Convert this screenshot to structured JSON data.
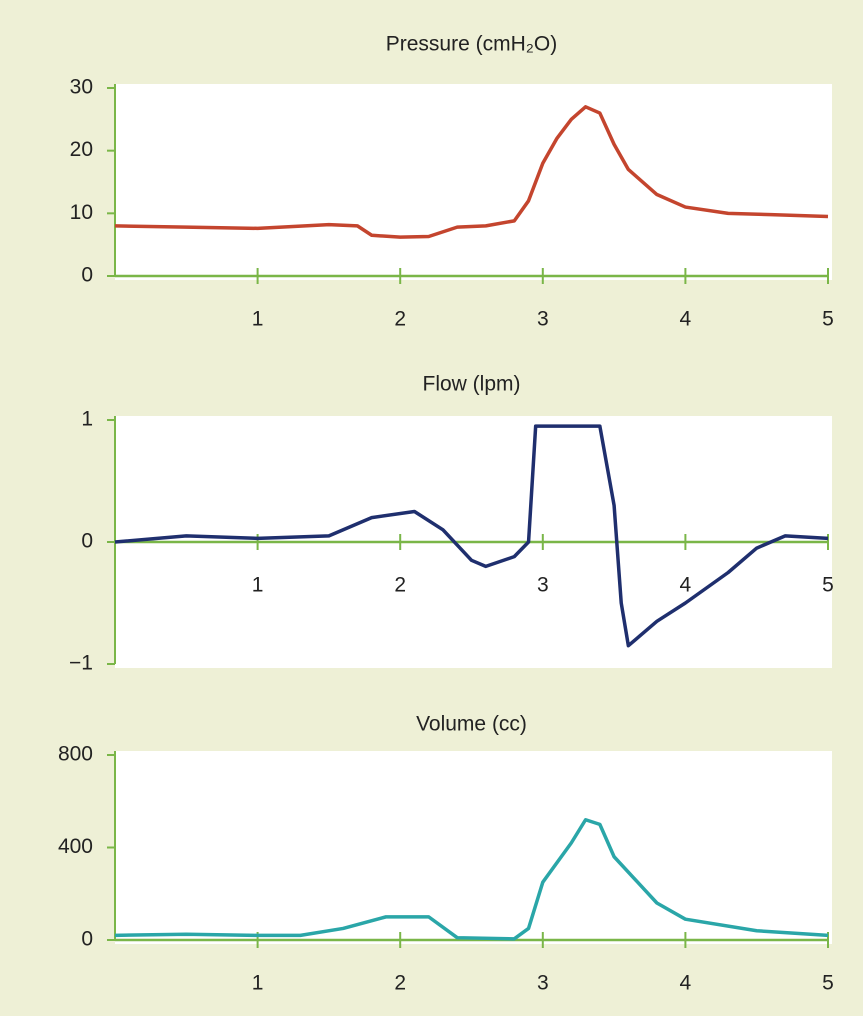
{
  "chart_data": [
    {
      "type": "line",
      "title": "Pressure (cmH₂O)",
      "x": [
        0,
        0.5,
        1,
        1.5,
        1.7,
        1.8,
        2,
        2.2,
        2.4,
        2.6,
        2.8,
        2.9,
        3.0,
        3.1,
        3.2,
        3.3,
        3.4,
        3.5,
        3.6,
        3.8,
        4,
        4.3,
        4.6,
        5
      ],
      "series": [
        {
          "color": "#c4452e",
          "values": [
            8,
            7.8,
            7.6,
            8.2,
            8,
            6.5,
            6.2,
            6.3,
            7.8,
            8,
            8.8,
            12,
            18,
            22,
            25,
            27,
            26,
            21,
            17,
            13,
            11,
            10,
            9.8,
            9.5
          ]
        }
      ],
      "xlim": [
        0,
        5
      ],
      "xticks": [
        1,
        2,
        3,
        4,
        5
      ],
      "ylim": [
        0,
        30
      ],
      "yticks": [
        0,
        10,
        20,
        30
      ]
    },
    {
      "type": "line",
      "title": "Flow (lpm)",
      "x": [
        0,
        0.5,
        1,
        1.5,
        1.8,
        2.1,
        2.3,
        2.5,
        2.6,
        2.8,
        2.9,
        2.95,
        3.4,
        3.5,
        3.55,
        3.6,
        3.8,
        4.0,
        4.3,
        4.5,
        4.7,
        5
      ],
      "series": [
        {
          "color": "#1f2f6e",
          "values": [
            0,
            0.05,
            0.03,
            0.05,
            0.2,
            0.25,
            0.1,
            -0.15,
            -0.2,
            -0.12,
            0,
            0.95,
            0.95,
            0.3,
            -0.5,
            -0.85,
            -0.65,
            -0.5,
            -0.25,
            -0.05,
            0.05,
            0.03
          ]
        }
      ],
      "xlim": [
        0,
        5
      ],
      "xticks": [
        1,
        2,
        3,
        4,
        5
      ],
      "ylim": [
        -1,
        1
      ],
      "yticks": [
        {
          "value": -1,
          "label": "−1"
        },
        0,
        1
      ]
    },
    {
      "type": "line",
      "title": "Volume (cc)",
      "x": [
        0,
        0.5,
        1,
        1.3,
        1.6,
        1.9,
        2.2,
        2.4,
        2.8,
        2.9,
        3.0,
        3.2,
        3.3,
        3.4,
        3.5,
        3.8,
        4,
        4.5,
        5
      ],
      "series": [
        {
          "color": "#2aa6a8",
          "values": [
            20,
            25,
            20,
            20,
            50,
            100,
            100,
            10,
            5,
            50,
            250,
            420,
            520,
            500,
            360,
            160,
            90,
            40,
            20
          ]
        }
      ],
      "xlim": [
        0,
        5
      ],
      "xticks": [
        1,
        2,
        3,
        4,
        5
      ],
      "ylim": [
        0,
        800
      ],
      "yticks": [
        0,
        400,
        800
      ]
    }
  ]
}
